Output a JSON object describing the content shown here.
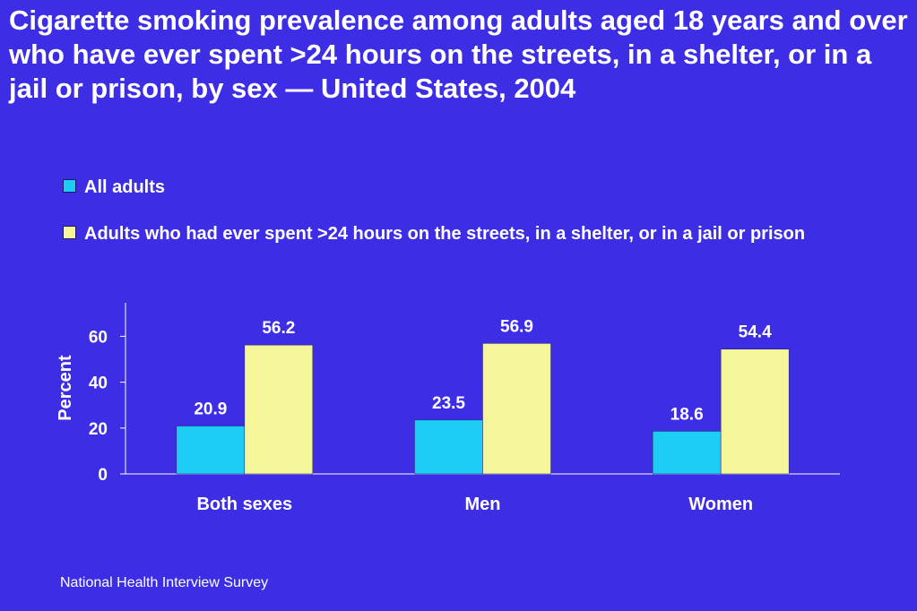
{
  "chart_data": {
    "type": "bar",
    "title": "Cigarette smoking prevalence among adults aged 18 years and over who have ever spent >24 hours on the streets, in a shelter, or in a jail or prison, by sex — United States, 2004",
    "categories": [
      "Both sexes",
      "Men",
      "Women"
    ],
    "series": [
      {
        "name": "All adults",
        "values": [
          20.9,
          23.5,
          18.6
        ],
        "color": "#1ecdf5"
      },
      {
        "name": "Adults who had ever spent >24 hours on the streets, in a shelter, or in a jail or prison",
        "values": [
          56.2,
          56.9,
          54.4
        ],
        "color": "#f5f59a"
      }
    ],
    "xlabel": "",
    "ylabel": "Percent",
    "ylim": [
      0,
      70
    ],
    "yticks": [
      0,
      20,
      40,
      60
    ],
    "grid": false,
    "legend_position": "top-left",
    "data_labels": true
  },
  "source": "National Health Interview Survey"
}
